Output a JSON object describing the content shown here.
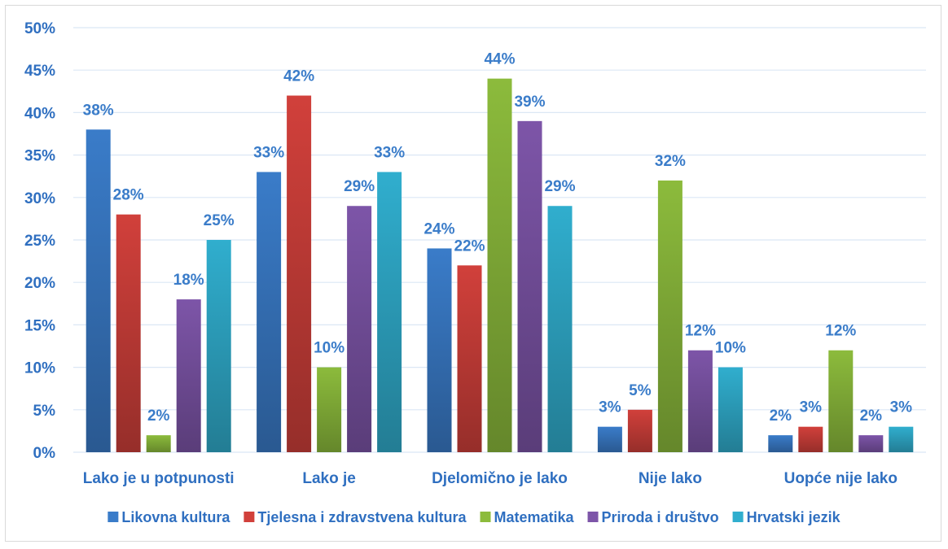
{
  "chart_data": {
    "type": "bar",
    "categories": [
      "Lako je u potpunosti",
      "Lako je",
      "Djelomično je lako",
      "Nije lako",
      "Uopće nije lako"
    ],
    "series": [
      {
        "name": "Likovna kultura",
        "color": "#3a7cc9",
        "values": [
          38,
          33,
          24,
          3,
          2
        ],
        "labels": [
          "38%",
          "33%",
          "24%",
          "3%",
          "2%"
        ]
      },
      {
        "name": "Tjelesna i zdravstvena kultura",
        "color": "#d1403b",
        "values": [
          28,
          42,
          22,
          5,
          3
        ],
        "labels": [
          "28%",
          "42%",
          "22%",
          "5%",
          "3%"
        ]
      },
      {
        "name": "Matematika",
        "color": "#8cbb3c",
        "values": [
          2,
          10,
          44,
          32,
          12
        ],
        "labels": [
          "2%",
          "10%",
          "44%",
          "32%",
          "12%"
        ]
      },
      {
        "name": "Priroda i društvo",
        "color": "#7d55a8",
        "values": [
          18,
          29,
          39,
          12,
          2
        ],
        "labels": [
          "18%",
          "29%",
          "39%",
          "12%",
          "2%"
        ]
      },
      {
        "name": "Hrvatski jezik",
        "color": "#30aece",
        "values": [
          25,
          33,
          29,
          10,
          3
        ],
        "labels": [
          "25%",
          "33%",
          "29%",
          "10%",
          "3%"
        ]
      }
    ],
    "y_ticks": [
      "0%",
      "5%",
      "10%",
      "15%",
      "20%",
      "25%",
      "30%",
      "35%",
      "40%",
      "45%",
      "50%"
    ],
    "ylim": [
      0,
      50
    ],
    "grid": true,
    "legend_position": "bottom"
  }
}
